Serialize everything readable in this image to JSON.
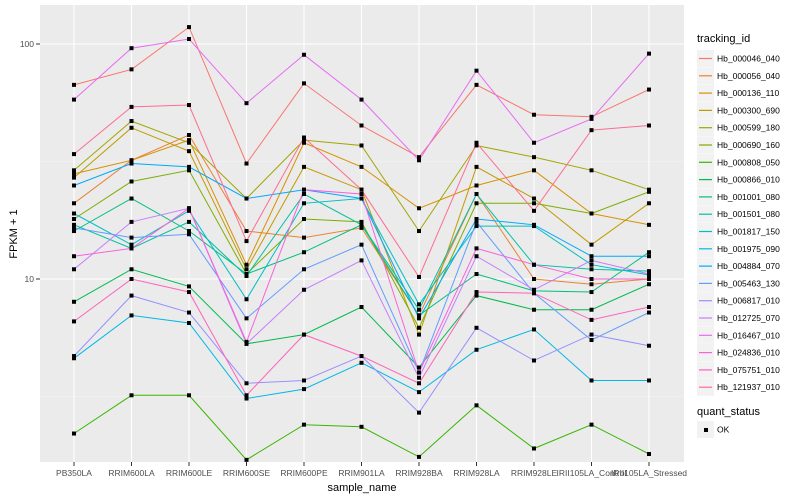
{
  "chart_data": {
    "type": "line",
    "title": "",
    "xlabel": "sample_name",
    "ylabel": "FPKM + 1",
    "yscale": "log10",
    "ylim": [
      1.6,
      130
    ],
    "y_ticks": [
      10,
      100
    ],
    "y_tick_labels": [
      "10",
      "100"
    ],
    "grid": true,
    "categories": [
      "PB350LA",
      "RRIM600LA",
      "RRIM600LE",
      "RRIM600SE",
      "RRIM600PE",
      "RRIM901LA",
      "RRIM928BA",
      "RRIM928LA",
      "RRIM928LE",
      "IRII105LA_Control",
      "IRII105LA_Stressed"
    ],
    "legend": {
      "position": "right",
      "color_title": "tracking_id",
      "shape_title": "quant_status",
      "shape_entries": [
        "OK"
      ]
    },
    "series": [
      {
        "name": "Hb_000046_040",
        "color": "#F8766D",
        "values": [
          67,
          78,
          118,
          31,
          68,
          45,
          33,
          67,
          50,
          49,
          64
        ]
      },
      {
        "name": "Hb_000056_040",
        "color": "#EA8331",
        "values": [
          21,
          32,
          41,
          16,
          15,
          16.5,
          7,
          23,
          10,
          9.5,
          10
        ]
      },
      {
        "name": "Hb_000136_110",
        "color": "#D89000",
        "values": [
          28,
          32,
          39,
          11.5,
          38,
          30,
          20,
          25,
          29,
          19,
          17
        ]
      },
      {
        "name": "Hb_000300_690",
        "color": "#C09B00",
        "values": [
          27,
          44,
          35,
          11,
          30,
          24,
          5.8,
          30,
          22,
          14,
          21
        ]
      },
      {
        "name": "Hb_000599_180",
        "color": "#A3A500",
        "values": [
          29,
          47,
          38,
          22,
          39,
          37,
          16,
          37,
          33,
          29,
          24
        ]
      },
      {
        "name": "Hb_000690_160",
        "color": "#7CAE00",
        "values": [
          18,
          26,
          29,
          10.5,
          18,
          17.5,
          6.2,
          21,
          21,
          19,
          23.5
        ]
      },
      {
        "name": "Hb_000808_050",
        "color": "#39B600",
        "values": [
          2.2,
          3.2,
          3.2,
          1.7,
          2.4,
          2.35,
          1.75,
          2.9,
          1.9,
          2.4,
          1.8
        ]
      },
      {
        "name": "Hb_000866_010",
        "color": "#00BB4E",
        "values": [
          8,
          11,
          9.3,
          5.3,
          5.8,
          7.6,
          4.2,
          8.5,
          7.4,
          7.4,
          9.5
        ]
      },
      {
        "name": "Hb_001001_080",
        "color": "#00BF7D",
        "values": [
          16,
          22,
          16,
          10.5,
          13,
          17,
          7,
          10.5,
          8.9,
          8.8,
          13
        ]
      },
      {
        "name": "Hb_001501_080",
        "color": "#00C1A3",
        "values": [
          17,
          13.5,
          17.5,
          10.3,
          23,
          17,
          7.4,
          23,
          11.5,
          11,
          10.8
        ]
      },
      {
        "name": "Hb_001817_150",
        "color": "#00BFC4",
        "values": [
          19,
          14,
          19.5,
          8.2,
          21,
          22,
          7.8,
          16.8,
          16.8,
          11.5,
          10.4
        ]
      },
      {
        "name": "Hb_001975_090",
        "color": "#00B8E5",
        "values": [
          4.6,
          7,
          6.5,
          3.1,
          3.4,
          4.4,
          3.3,
          5,
          6.1,
          3.7,
          3.7
        ]
      },
      {
        "name": "Hb_004884_070",
        "color": "#00A9FF",
        "values": [
          25,
          31,
          30,
          22,
          24,
          22,
          6.8,
          18,
          17,
          12.5,
          12.5
        ]
      },
      {
        "name": "Hb_005463_130",
        "color": "#619CFF",
        "values": [
          16.5,
          15,
          15.5,
          6.8,
          11,
          14,
          4,
          17.5,
          8.7,
          5.5,
          7.2
        ]
      },
      {
        "name": "Hb_006817_010",
        "color": "#9590FF",
        "values": [
          4.7,
          8.5,
          7.2,
          3.6,
          3.7,
          4.7,
          2.7,
          6.2,
          4.5,
          5.8,
          5.2
        ]
      },
      {
        "name": "Hb_012725_070",
        "color": "#C77CFF",
        "values": [
          11,
          17.5,
          20,
          5.3,
          9,
          12,
          3.8,
          12.5,
          9,
          12,
          10.5
        ]
      },
      {
        "name": "Hb_016467_010",
        "color": "#E76BF3",
        "values": [
          58,
          96,
          105,
          56,
          90,
          58,
          32,
          77,
          38,
          48,
          91
        ]
      },
      {
        "name": "Hb_024836_010",
        "color": "#FA62DB",
        "values": [
          12.5,
          13.5,
          20,
          5.4,
          24,
          23,
          4,
          13.5,
          11.5,
          10,
          10
        ]
      },
      {
        "name": "Hb_075751_010",
        "color": "#FF62BC",
        "values": [
          6.6,
          10,
          8.8,
          3.2,
          5.8,
          4.7,
          3.6,
          8.8,
          8.7,
          6.7,
          7.6
        ]
      },
      {
        "name": "Hb_121937_010",
        "color": "#FF6C91",
        "values": [
          34,
          54,
          55,
          14.5,
          40,
          24,
          10.2,
          38,
          19.5,
          43,
          45
        ]
      }
    ]
  }
}
